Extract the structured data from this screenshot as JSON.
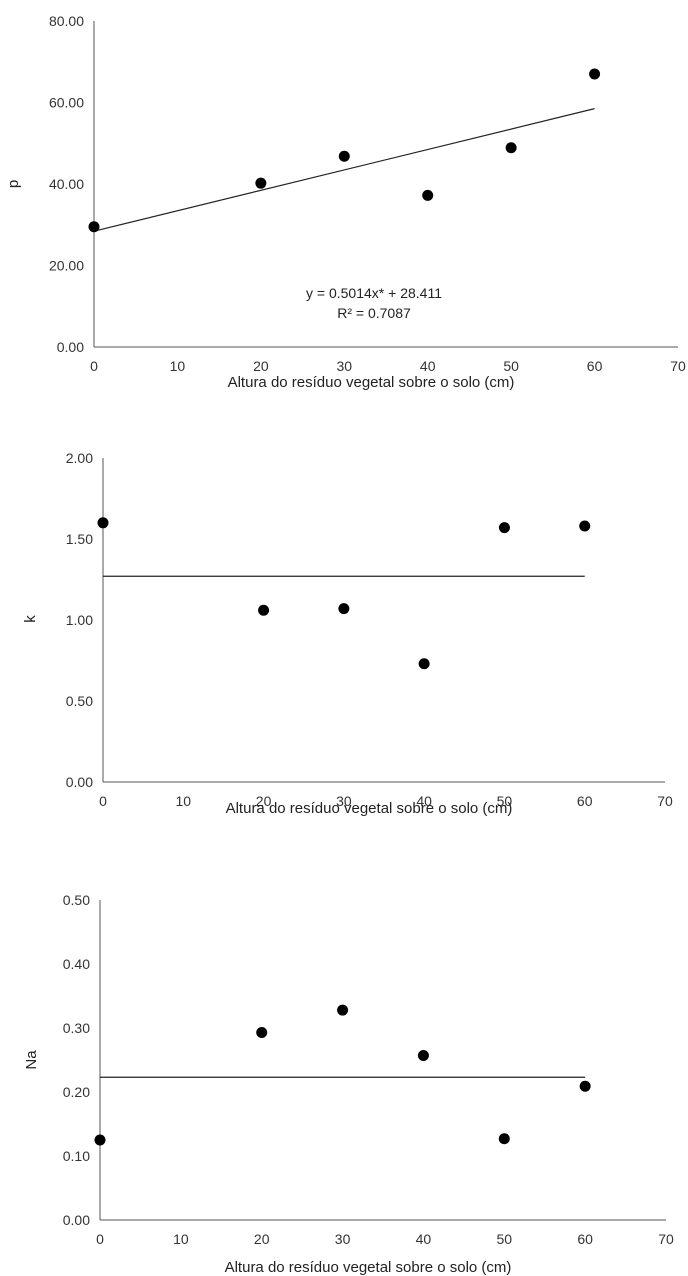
{
  "chart_data": [
    {
      "type": "scatter",
      "title": "",
      "xlabel": "Altura do resíduo vegetal sobre o solo (cm)",
      "ylabel": "p",
      "xlim": [
        0,
        70
      ],
      "ylim": [
        0,
        80
      ],
      "x_ticks": [
        "0",
        "10",
        "20",
        "30",
        "40",
        "50",
        "60",
        "70"
      ],
      "y_ticks": [
        "0.00",
        "20.00",
        "40.00",
        "60.00",
        "80.00"
      ],
      "series": [
        {
          "x": [
            0,
            20,
            30,
            40,
            50,
            60
          ],
          "y": [
            29.5,
            40.2,
            46.8,
            37.2,
            48.9,
            67.0
          ]
        }
      ],
      "trendline": {
        "slope": 0.5014,
        "intercept": 28.411,
        "x_range": [
          0,
          60
        ]
      },
      "annotation": {
        "equation": "y = 0.5014x* + 28.411",
        "r2": "R² = 0.7087"
      }
    },
    {
      "type": "scatter",
      "title": "",
      "xlabel": "Altura do resíduo vegetal sobre o solo (cm)",
      "ylabel": "k",
      "xlim": [
        0,
        70
      ],
      "ylim": [
        0,
        2
      ],
      "x_ticks": [
        "0",
        "10",
        "20",
        "30",
        "40",
        "50",
        "60",
        "70"
      ],
      "y_ticks": [
        "0.00",
        "0.50",
        "1.00",
        "1.50",
        "2.00"
      ],
      "series": [
        {
          "x": [
            0,
            20,
            30,
            40,
            50,
            60
          ],
          "y": [
            1.6,
            1.06,
            1.07,
            0.73,
            1.57,
            1.58
          ]
        }
      ],
      "trendline": {
        "slope": 0,
        "intercept": 1.27,
        "x_range": [
          0,
          60
        ]
      }
    },
    {
      "type": "scatter",
      "title": "",
      "xlabel": "Altura do resíduo vegetal sobre o solo (cm)",
      "ylabel": "Na",
      "xlim": [
        0,
        70
      ],
      "ylim": [
        0,
        0.5
      ],
      "x_ticks": [
        "0",
        "10",
        "20",
        "30",
        "40",
        "50",
        "60",
        "70"
      ],
      "y_ticks": [
        "0.00",
        "0.10",
        "0.20",
        "0.30",
        "0.40",
        "0.50"
      ],
      "series": [
        {
          "x": [
            0,
            20,
            30,
            40,
            50,
            60
          ],
          "y": [
            0.125,
            0.293,
            0.328,
            0.257,
            0.127,
            0.209
          ]
        }
      ],
      "trendline": {
        "slope": 0,
        "intercept": 0.223,
        "x_range": [
          0,
          60
        ]
      }
    }
  ]
}
